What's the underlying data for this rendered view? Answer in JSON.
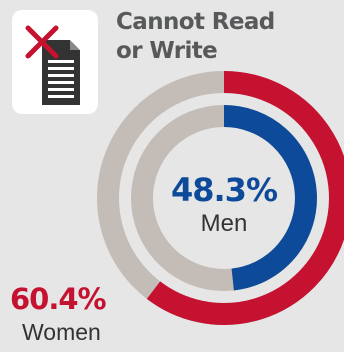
{
  "header": {
    "title_line1": "Cannot Read",
    "title_line2": "or Write",
    "icon": "crossed-out-document-icon"
  },
  "colors": {
    "background": "#e6e6e6",
    "men": "#0d4a99",
    "women": "#c41230",
    "track": "#c4bcb6",
    "title": "#58595b"
  },
  "chart_data": {
    "type": "pie",
    "variant": "concentric-donut",
    "unit": "%",
    "series": [
      {
        "name": "Men",
        "value": 48.3,
        "label": "48.3%",
        "ring": "inner"
      },
      {
        "name": "Women",
        "value": 60.4,
        "label": "60.4%",
        "ring": "outer"
      }
    ]
  }
}
